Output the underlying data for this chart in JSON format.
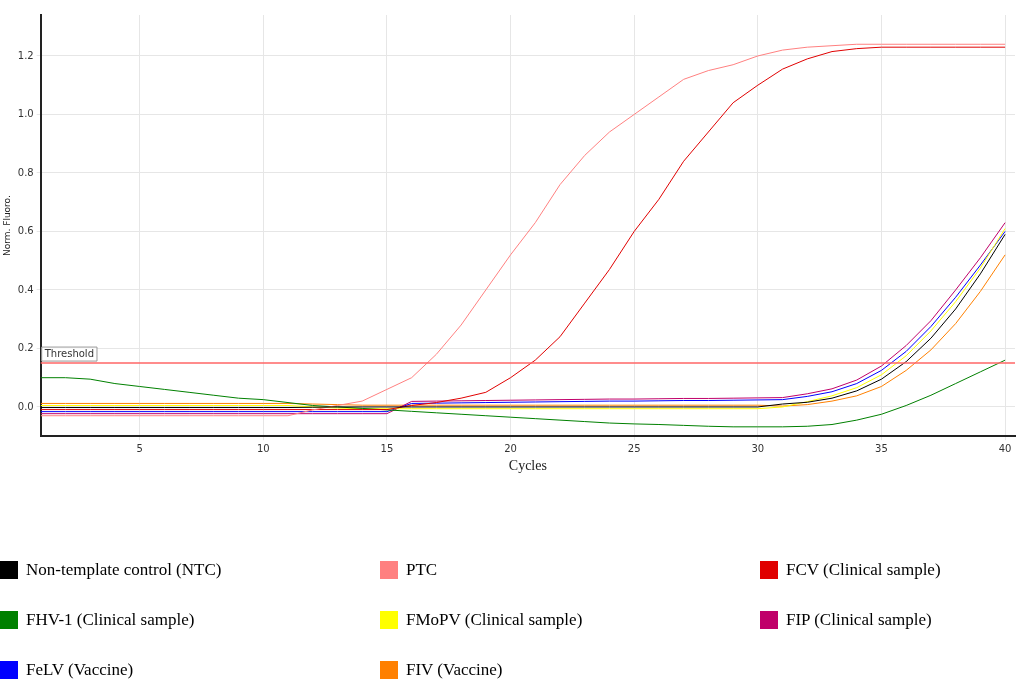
{
  "chart_data": {
    "type": "line",
    "xlabel": "Cycles",
    "ylabel": "Norm. Fluoro.",
    "x": [
      1,
      2,
      3,
      4,
      5,
      6,
      7,
      8,
      9,
      10,
      11,
      12,
      13,
      14,
      15,
      16,
      17,
      18,
      19,
      20,
      21,
      22,
      23,
      24,
      25,
      26,
      27,
      28,
      29,
      30,
      31,
      32,
      33,
      34,
      35,
      36,
      37,
      38,
      39,
      40
    ],
    "series": [
      {
        "name": "Non-template control (NTC)",
        "color": "#000000",
        "values": [
          -0.002,
          -0.002,
          -0.002,
          -0.002,
          -0.002,
          -0.002,
          -0.002,
          -0.002,
          -0.002,
          -0.002,
          -0.002,
          -0.001,
          0,
          0,
          0,
          0,
          0,
          0,
          0,
          0,
          0,
          0,
          0,
          0,
          0,
          0,
          0,
          0,
          0,
          0,
          0.01,
          0.016,
          0.03,
          0.055,
          0.095,
          0.155,
          0.235,
          0.335,
          0.455,
          0.59
        ]
      },
      {
        "name": "PTC",
        "color": "#ff8080",
        "values": [
          -0.03,
          -0.03,
          -0.03,
          -0.03,
          -0.03,
          -0.03,
          -0.03,
          -0.03,
          -0.03,
          -0.03,
          -0.03,
          -0.01,
          0.005,
          0.02,
          0.06,
          0.1,
          0.18,
          0.28,
          0.4,
          0.52,
          0.63,
          0.76,
          0.86,
          0.94,
          1.0,
          1.06,
          1.12,
          1.15,
          1.17,
          1.2,
          1.22,
          1.23,
          1.235,
          1.24,
          1.24,
          1.24,
          1.24,
          1.24,
          1.24,
          1.24
        ]
      },
      {
        "name": "FCV (Clinical sample)",
        "color": "#e00000",
        "values": [
          -0.009,
          -0.009,
          -0.009,
          -0.009,
          -0.009,
          -0.009,
          -0.009,
          -0.009,
          -0.009,
          -0.009,
          -0.009,
          -0.009,
          -0.009,
          -0.009,
          -0.009,
          0.005,
          0.015,
          0.03,
          0.05,
          0.1,
          0.16,
          0.24,
          0.355,
          0.47,
          0.6,
          0.71,
          0.84,
          0.94,
          1.04,
          1.1,
          1.155,
          1.19,
          1.215,
          1.225,
          1.23,
          1.23,
          1.23,
          1.23,
          1.23,
          1.23
        ]
      },
      {
        "name": "FHV-1 (Clinical sample)",
        "color": "#008000",
        "values": [
          0.1,
          0.1,
          0.095,
          0.08,
          0.07,
          0.06,
          0.05,
          0.04,
          0.03,
          0.025,
          0.015,
          0.005,
          0,
          -0.005,
          -0.01,
          -0.015,
          -0.02,
          -0.025,
          -0.03,
          -0.035,
          -0.04,
          -0.045,
          -0.05,
          -0.055,
          -0.058,
          -0.06,
          -0.063,
          -0.066,
          -0.068,
          -0.068,
          -0.068,
          -0.066,
          -0.06,
          -0.045,
          -0.025,
          0.005,
          0.04,
          0.08,
          0.12,
          0.16
        ]
      },
      {
        "name": "FMoPV (Clinical sample)",
        "color": "#ffff00",
        "values": [
          0.005,
          0.005,
          0.005,
          0.005,
          0.005,
          0.005,
          0.005,
          0.005,
          0.005,
          0.005,
          0.005,
          0,
          -0.004,
          -0.006,
          -0.006,
          -0.006,
          -0.006,
          -0.006,
          -0.006,
          -0.006,
          -0.006,
          -0.006,
          -0.006,
          -0.006,
          -0.006,
          -0.006,
          -0.006,
          -0.006,
          -0.006,
          -0.006,
          0,
          0.018,
          0.038,
          0.066,
          0.11,
          0.175,
          0.26,
          0.36,
          0.475,
          0.61
        ]
      },
      {
        "name": "FIP (Clinical sample)",
        "color": "#c0006a",
        "values": [
          -0.023,
          -0.023,
          -0.023,
          -0.023,
          -0.023,
          -0.023,
          -0.023,
          -0.023,
          -0.023,
          -0.023,
          -0.023,
          -0.023,
          -0.023,
          -0.023,
          -0.023,
          0.019,
          0.02,
          0.021,
          0.022,
          0.023,
          0.024,
          0.025,
          0.026,
          0.027,
          0.027,
          0.028,
          0.029,
          0.029,
          0.03,
          0.031,
          0.032,
          0.045,
          0.062,
          0.092,
          0.14,
          0.21,
          0.295,
          0.4,
          0.51,
          0.63
        ]
      },
      {
        "name": "FeLV (Vaccine)",
        "color": "#0000ff",
        "values": [
          -0.016,
          -0.016,
          -0.016,
          -0.016,
          -0.016,
          -0.016,
          -0.016,
          -0.016,
          -0.016,
          -0.016,
          -0.016,
          -0.016,
          -0.016,
          -0.016,
          -0.016,
          0.012,
          0.013,
          0.014,
          0.015,
          0.016,
          0.017,
          0.018,
          0.019,
          0.02,
          0.02,
          0.021,
          0.022,
          0.022,
          0.023,
          0.024,
          0.025,
          0.036,
          0.052,
          0.08,
          0.125,
          0.19,
          0.275,
          0.375,
          0.485,
          0.6
        ]
      },
      {
        "name": "FIV (Vaccine)",
        "color": "#ff8000",
        "values": [
          0.012,
          0.012,
          0.012,
          0.012,
          0.012,
          0.012,
          0.012,
          0.012,
          0.012,
          0.012,
          0.012,
          0.01,
          0.008,
          0.006,
          0.006,
          0.006,
          0.006,
          0.006,
          0.006,
          0.006,
          0.006,
          0.006,
          0.006,
          0.006,
          0.006,
          0.006,
          0.006,
          0.006,
          0.006,
          0.006,
          0.003,
          0.008,
          0.02,
          0.038,
          0.07,
          0.125,
          0.195,
          0.285,
          0.395,
          0.52
        ]
      }
    ],
    "xlim": [
      1,
      40.4
    ],
    "xticks": [
      5,
      10,
      15,
      20,
      25,
      30,
      35,
      40
    ],
    "ylim": [
      -0.1,
      1.34
    ],
    "yticks": [
      {
        "value": 0,
        "label": "0.0"
      },
      {
        "value": 0.2,
        "label": "0.2"
      },
      {
        "value": 0.4,
        "label": "0.4"
      },
      {
        "value": 0.6,
        "label": "0.6"
      },
      {
        "value": 0.8,
        "label": "0.8"
      },
      {
        "value": 1,
        "label": "1.0"
      },
      {
        "value": 1.2,
        "label": "1.2"
      }
    ],
    "ref_lines": [
      {
        "axis": "y",
        "value": 0.15,
        "label": "Threshold",
        "color": "#ff6666"
      }
    ],
    "grid": true,
    "legend": "bottom",
    "line_style": "solid"
  }
}
